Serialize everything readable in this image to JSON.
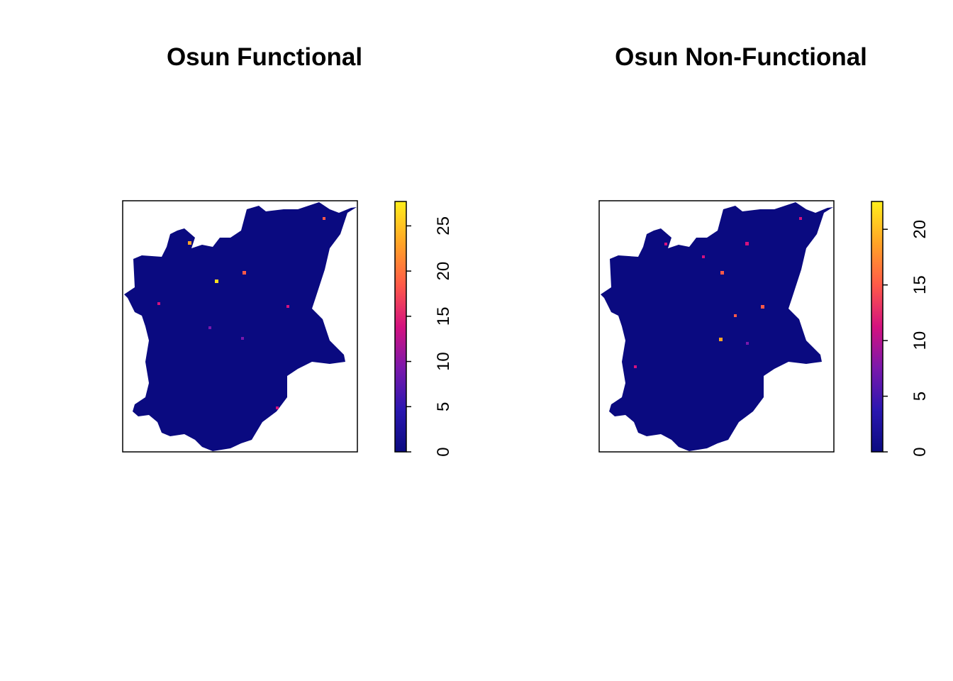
{
  "chart_data": [
    {
      "type": "raster",
      "title": "Osun Functional",
      "ylim": [
        0,
        27.7
      ],
      "yticks": [
        0,
        5,
        10,
        15,
        20,
        25
      ],
      "colors": [
        "#0b0b80",
        "#2a17b0",
        "#7a18ac",
        "#d4127f",
        "#ff5a48",
        "#ffa426",
        "#ffee1c"
      ]
    },
    {
      "type": "raster",
      "title": "Osun Non-Functional",
      "ylim": [
        0,
        22.5
      ],
      "yticks": [
        0,
        5,
        10,
        15,
        20
      ],
      "colors": [
        "#0b0b80",
        "#2a17b0",
        "#7a18ac",
        "#d4127f",
        "#ff5a48",
        "#ffa426",
        "#ffee1c"
      ]
    }
  ]
}
